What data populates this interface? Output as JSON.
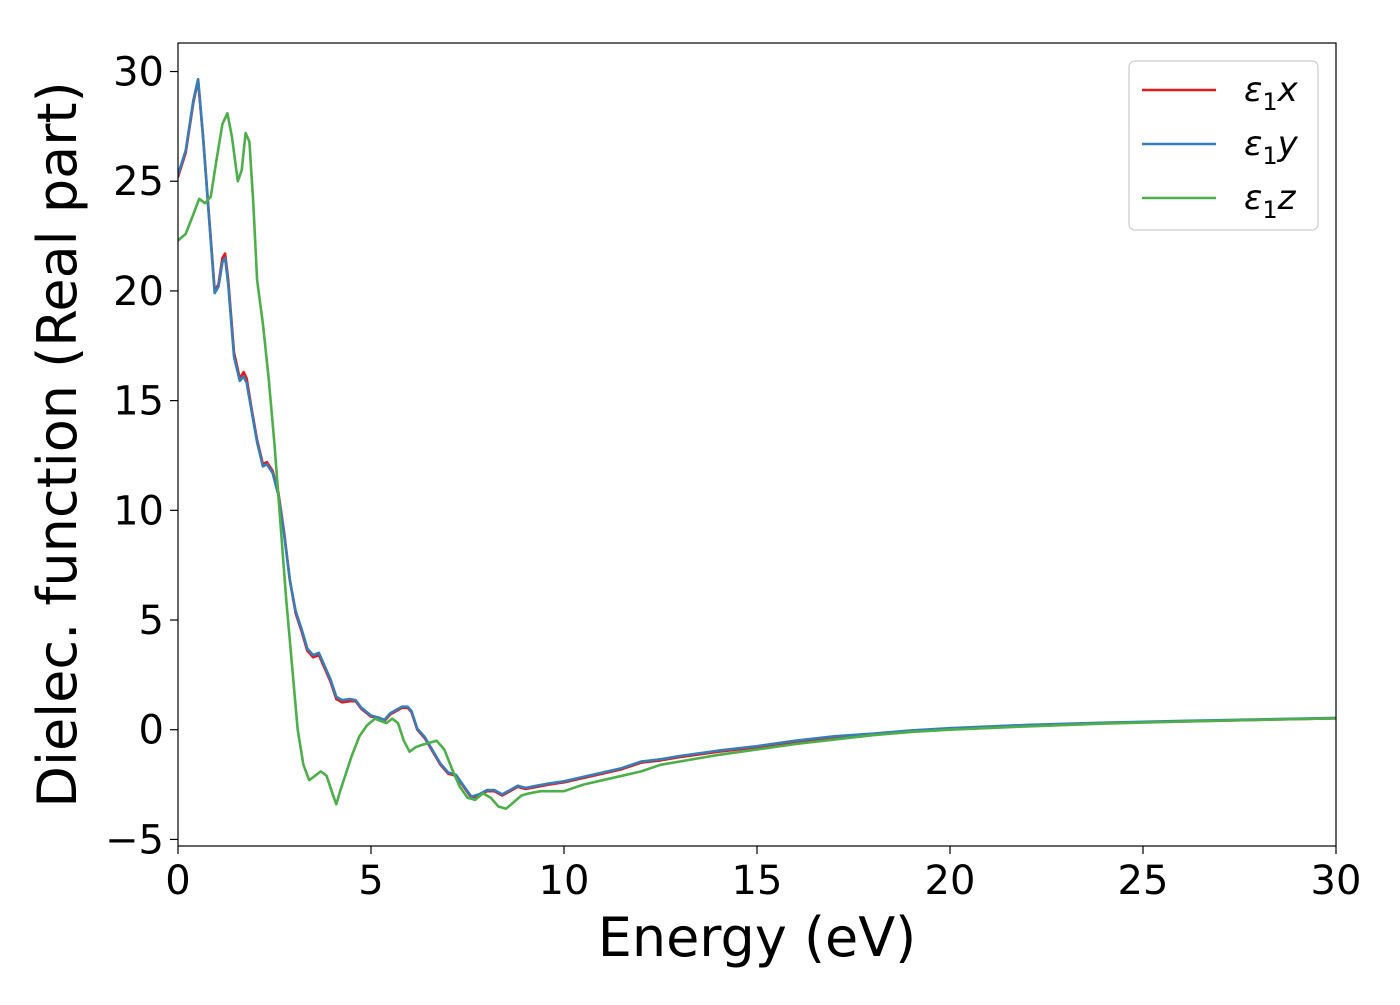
{
  "chart_data": {
    "type": "line",
    "xlabel": "Energy (eV)",
    "ylabel": "Dielec. function (Real part)",
    "xlim": [
      0,
      30
    ],
    "ylim": [
      -5.3,
      31.3
    ],
    "xticks": [
      0,
      5,
      10,
      15,
      20,
      25,
      30
    ],
    "yticks": [
      -5,
      0,
      5,
      10,
      15,
      20,
      25,
      30
    ],
    "xtick_labels": [
      "0",
      "5",
      "10",
      "15",
      "20",
      "25",
      "30"
    ],
    "ytick_labels": [
      "−5",
      "0",
      "5",
      "10",
      "15",
      "20",
      "25",
      "30"
    ],
    "grid": false,
    "legend_position": "top-right",
    "series": [
      {
        "name": "ε₁x",
        "legend_base": "ε",
        "legend_sub": "1",
        "legend_var": "x",
        "color": "#e41a1c",
        "x": [
          0,
          0.2,
          0.4,
          0.52,
          0.65,
          0.8,
          0.95,
          1.05,
          1.15,
          1.22,
          1.3,
          1.45,
          1.6,
          1.7,
          1.78,
          1.9,
          2.05,
          2.2,
          2.3,
          2.45,
          2.6,
          2.75,
          2.9,
          3.05,
          3.2,
          3.35,
          3.5,
          3.65,
          3.8,
          3.95,
          4.1,
          4.25,
          4.45,
          4.6,
          4.75,
          5.0,
          5.2,
          5.35,
          5.5,
          5.65,
          5.8,
          5.95,
          6.05,
          6.2,
          6.4,
          6.6,
          6.8,
          7.0,
          7.2,
          7.4,
          7.6,
          7.8,
          8.0,
          8.2,
          8.4,
          8.6,
          8.8,
          9.0,
          9.3,
          9.6,
          10.0,
          10.5,
          11.0,
          11.5,
          12.0,
          12.5,
          13.0,
          14.0,
          15.0,
          16.0,
          17.0,
          18.0,
          19.0,
          20.0,
          22.0,
          24.0,
          26.0,
          28.0,
          30.0
        ],
        "values": [
          25.2,
          26.3,
          28.6,
          29.6,
          27.0,
          23.5,
          20.0,
          20.3,
          21.5,
          21.7,
          20.5,
          17.2,
          16.0,
          16.3,
          16.0,
          14.7,
          13.2,
          12.1,
          12.2,
          11.8,
          10.8,
          9.0,
          6.8,
          5.3,
          4.5,
          3.6,
          3.3,
          3.4,
          2.8,
          2.2,
          1.4,
          1.25,
          1.3,
          1.3,
          0.95,
          0.6,
          0.55,
          0.4,
          0.7,
          0.85,
          1.0,
          1.0,
          0.8,
          0.0,
          -0.4,
          -1.0,
          -1.6,
          -2.0,
          -2.1,
          -2.6,
          -3.1,
          -3.0,
          -2.8,
          -2.8,
          -3.0,
          -2.8,
          -2.6,
          -2.7,
          -2.6,
          -2.5,
          -2.4,
          -2.2,
          -2.0,
          -1.8,
          -1.5,
          -1.4,
          -1.25,
          -1.0,
          -0.8,
          -0.55,
          -0.35,
          -0.2,
          -0.05,
          0.05,
          0.2,
          0.3,
          0.38,
          0.45,
          0.52
        ]
      },
      {
        "name": "ε₁y",
        "legend_base": "ε",
        "legend_sub": "1",
        "legend_var": "y",
        "color": "#377eb8",
        "x": [
          0,
          0.2,
          0.4,
          0.52,
          0.65,
          0.8,
          0.95,
          1.05,
          1.15,
          1.22,
          1.3,
          1.45,
          1.6,
          1.7,
          1.78,
          1.9,
          2.05,
          2.2,
          2.3,
          2.45,
          2.6,
          2.75,
          2.9,
          3.05,
          3.2,
          3.35,
          3.5,
          3.65,
          3.8,
          3.95,
          4.1,
          4.25,
          4.45,
          4.6,
          4.75,
          5.0,
          5.2,
          5.35,
          5.5,
          5.65,
          5.8,
          5.95,
          6.05,
          6.2,
          6.4,
          6.6,
          6.8,
          7.0,
          7.2,
          7.4,
          7.6,
          7.8,
          8.0,
          8.2,
          8.4,
          8.6,
          8.8,
          9.0,
          9.3,
          9.6,
          10.0,
          10.5,
          11.0,
          11.5,
          12.0,
          12.5,
          13.0,
          14.0,
          15.0,
          16.0,
          17.0,
          18.0,
          19.0,
          20.0,
          22.0,
          24.0,
          26.0,
          28.0,
          30.0
        ],
        "values": [
          25.3,
          26.4,
          28.7,
          29.65,
          27.0,
          23.4,
          19.9,
          20.2,
          21.3,
          21.5,
          20.3,
          17.0,
          15.9,
          16.1,
          15.8,
          14.6,
          13.1,
          12.0,
          12.1,
          11.7,
          10.7,
          8.9,
          6.8,
          5.4,
          4.6,
          3.7,
          3.4,
          3.5,
          2.9,
          2.3,
          1.5,
          1.35,
          1.4,
          1.35,
          1.0,
          0.65,
          0.55,
          0.45,
          0.75,
          0.9,
          1.05,
          1.05,
          0.85,
          0.05,
          -0.35,
          -0.95,
          -1.55,
          -1.95,
          -2.05,
          -2.55,
          -3.05,
          -2.95,
          -2.75,
          -2.75,
          -2.95,
          -2.75,
          -2.55,
          -2.65,
          -2.55,
          -2.45,
          -2.35,
          -2.15,
          -1.95,
          -1.75,
          -1.45,
          -1.35,
          -1.2,
          -0.95,
          -0.75,
          -0.5,
          -0.3,
          -0.18,
          -0.03,
          0.07,
          0.22,
          0.32,
          0.4,
          0.47,
          0.54
        ]
      },
      {
        "name": "ε₁z",
        "legend_base": "ε",
        "legend_sub": "1",
        "legend_var": "z",
        "color": "#4daf4a",
        "x": [
          0,
          0.2,
          0.4,
          0.55,
          0.7,
          0.85,
          1.0,
          1.15,
          1.28,
          1.4,
          1.55,
          1.65,
          1.75,
          1.85,
          1.95,
          2.05,
          2.2,
          2.35,
          2.5,
          2.65,
          2.8,
          2.95,
          3.1,
          3.25,
          3.4,
          3.55,
          3.7,
          3.85,
          4.0,
          4.1,
          4.2,
          4.35,
          4.5,
          4.7,
          4.9,
          5.1,
          5.25,
          5.4,
          5.55,
          5.7,
          5.85,
          6.0,
          6.15,
          6.3,
          6.5,
          6.7,
          6.9,
          7.1,
          7.3,
          7.5,
          7.7,
          7.9,
          8.1,
          8.3,
          8.5,
          8.7,
          8.9,
          9.1,
          9.4,
          9.7,
          10.0,
          10.5,
          11.0,
          11.5,
          12.0,
          12.5,
          13.0,
          14.0,
          15.0,
          16.0,
          17.0,
          18.0,
          19.0,
          20.0,
          22.0,
          24.0,
          26.0,
          28.0,
          30.0
        ],
        "values": [
          22.3,
          22.6,
          23.5,
          24.2,
          24.0,
          24.3,
          26.0,
          27.6,
          28.1,
          27.0,
          25.0,
          25.5,
          27.2,
          26.8,
          24.0,
          20.5,
          18.5,
          16.0,
          13.0,
          9.5,
          6.0,
          3.0,
          0.0,
          -1.6,
          -2.3,
          -2.1,
          -1.9,
          -2.1,
          -2.9,
          -3.4,
          -2.8,
          -2.0,
          -1.2,
          -0.3,
          0.2,
          0.5,
          0.4,
          0.3,
          0.5,
          0.3,
          -0.5,
          -1.0,
          -0.8,
          -0.7,
          -0.6,
          -0.5,
          -0.9,
          -1.8,
          -2.6,
          -3.1,
          -3.2,
          -2.9,
          -3.1,
          -3.5,
          -3.6,
          -3.3,
          -3.0,
          -2.9,
          -2.8,
          -2.8,
          -2.8,
          -2.5,
          -2.3,
          -2.1,
          -1.9,
          -1.6,
          -1.45,
          -1.15,
          -0.9,
          -0.65,
          -0.45,
          -0.25,
          -0.1,
          0.0,
          0.15,
          0.28,
          0.37,
          0.45,
          0.52
        ]
      }
    ]
  }
}
